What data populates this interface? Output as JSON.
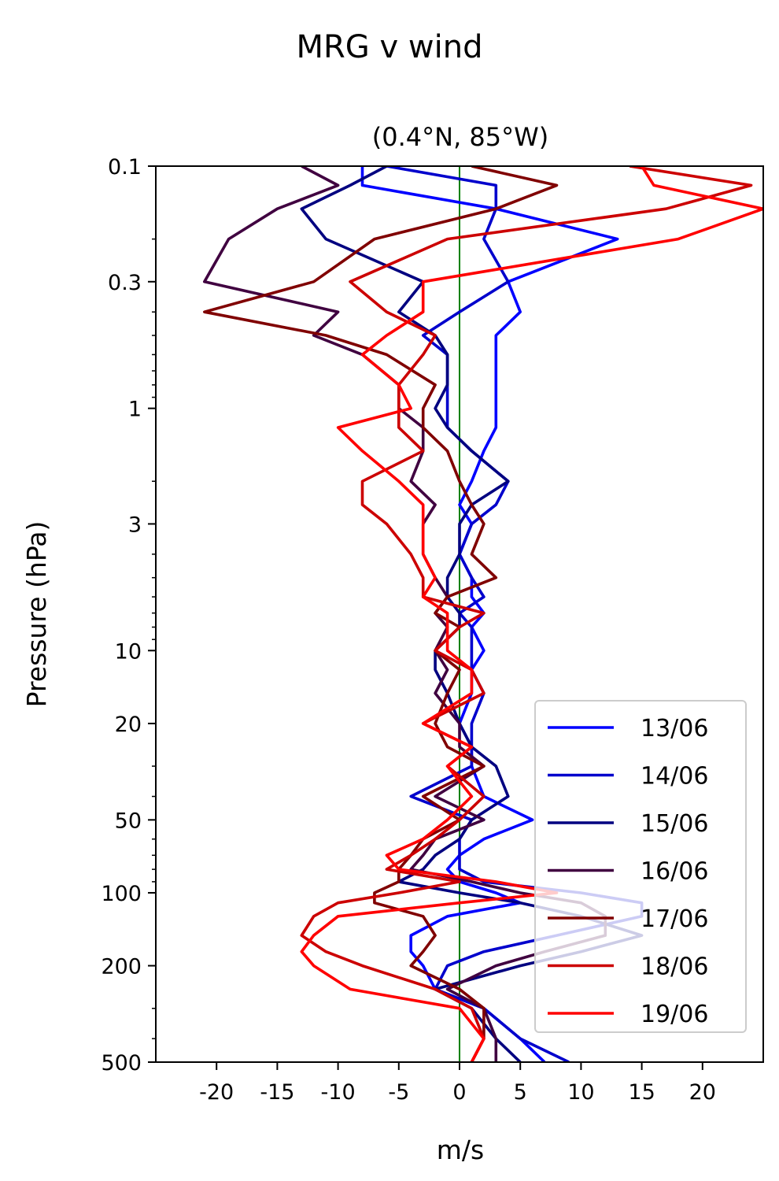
{
  "chart_data": {
    "type": "line",
    "title": "MRG v wind",
    "subtitle": "(0.4°N, 85°W)",
    "xlabel": "m/s",
    "ylabel": "Pressure (hPa)",
    "xlim": [
      -25,
      25
    ],
    "ylim": [
      500,
      0.1
    ],
    "yscale": "log",
    "x_ticks": [
      -20,
      -15,
      -10,
      -5,
      0,
      5,
      10,
      15,
      20
    ],
    "x_tick_labels": [
      "-20",
      "-15",
      "-10",
      "-5",
      "0",
      "5",
      "10",
      "15",
      "20"
    ],
    "y_ticks": [
      0.1,
      0.3,
      1,
      3,
      10,
      20,
      50,
      100,
      200,
      500
    ],
    "y_tick_labels": [
      "0.1",
      "0.3",
      "1",
      "3",
      "10",
      "20",
      "50",
      "100",
      "200",
      "500"
    ],
    "zero_line": {
      "x": 0,
      "color": "#008000"
    },
    "grid": false,
    "legend_position": "lower-right",
    "pressure_levels": [
      0.1,
      0.12,
      0.15,
      0.2,
      0.3,
      0.4,
      0.5,
      0.6,
      0.8,
      1,
      1.2,
      1.5,
      2,
      2.5,
      3,
      4,
      5,
      6,
      7,
      8,
      10,
      12,
      15,
      20,
      25,
      30,
      40,
      50,
      60,
      70,
      80,
      90,
      100,
      110,
      125,
      150,
      175,
      200,
      250,
      300,
      400,
      500
    ],
    "series": [
      {
        "name": "13/06",
        "color": "#0000ff",
        "values": [
          -8,
          -8,
          3,
          13,
          4,
          5,
          3,
          3,
          3,
          3,
          3,
          2,
          1,
          0,
          1,
          0,
          1,
          1,
          2,
          1,
          2,
          1,
          1,
          0,
          1,
          1,
          2,
          6,
          2,
          0,
          -1,
          0,
          3,
          5,
          -1,
          -4,
          -4,
          -3,
          -2,
          2,
          5,
          7
        ]
      },
      {
        "name": "14/06",
        "color": "#0000cc",
        "values": [
          -6,
          3,
          3,
          2,
          4,
          0,
          -3,
          -1,
          -1,
          -1,
          -1,
          1,
          4,
          3,
          1,
          0,
          1,
          2,
          0,
          1,
          1,
          1,
          2,
          1,
          1,
          1,
          -4,
          1,
          0,
          0,
          0,
          2,
          10,
          15,
          15,
          8,
          2,
          -1,
          -2,
          2,
          5,
          9
        ]
      },
      {
        "name": "15/06",
        "color": "#000080",
        "values": [
          -6,
          -9,
          -13,
          -11,
          -3,
          -5,
          -2,
          -1,
          -1,
          -2,
          -1,
          1,
          4,
          1,
          0,
          0,
          -1,
          -1,
          0,
          0,
          -2,
          -2,
          -1,
          0,
          1,
          3,
          4,
          1,
          0,
          -2,
          -3,
          -5,
          0,
          5,
          10,
          15,
          10,
          5,
          -2,
          1,
          3,
          5
        ]
      },
      {
        "name": "16/06",
        "color": "#400040",
        "values": [
          -13,
          -10,
          -15,
          -19,
          -21,
          -10,
          -12,
          -8,
          -5,
          -5,
          -3,
          -3,
          -4,
          -2,
          -3,
          -3,
          -2,
          -1,
          -2,
          -1,
          -2,
          -1,
          -2,
          0,
          0,
          2,
          -2,
          2,
          -2,
          -3,
          -4,
          1,
          5,
          10,
          12,
          12,
          7,
          3,
          -1,
          2,
          3,
          3
        ]
      },
      {
        "name": "17/06",
        "color": "#800000",
        "values": [
          1,
          8,
          3,
          -7,
          -12,
          -21,
          -11,
          -6,
          -2,
          -3,
          -3,
          -1,
          0,
          1,
          2,
          1,
          3,
          -1,
          -2,
          0,
          -2,
          0,
          -1,
          -2,
          -1,
          2,
          -3,
          0,
          -3,
          -4,
          -5,
          -5,
          -7,
          -7,
          -3,
          -2,
          -3,
          -4,
          0,
          2,
          2,
          1
        ]
      },
      {
        "name": "18/06",
        "color": "#cc0000",
        "values": [
          14,
          24,
          17,
          -1,
          -9,
          -6,
          -2,
          -3,
          -5,
          -5,
          -5,
          -3,
          -8,
          -8,
          -6,
          -4,
          -3,
          -3,
          2,
          0,
          -2,
          1,
          2,
          -3,
          1,
          -1,
          2,
          0,
          -2,
          -4,
          -6,
          0,
          -5,
          -10,
          -12,
          -13,
          -11,
          -8,
          -2,
          1,
          2,
          1
        ]
      },
      {
        "name": "19/06",
        "color": "#ff0000",
        "values": [
          15,
          16,
          25,
          18,
          -3,
          -3,
          -6,
          -8,
          -5,
          -4,
          -10,
          -8,
          -5,
          -3,
          -3,
          -3,
          -2,
          -3,
          -1,
          -1,
          -1,
          1,
          1,
          -3,
          1,
          -1,
          1,
          -1,
          -3,
          -6,
          -5,
          3,
          8,
          0,
          -10,
          -12,
          -13,
          -12,
          -9,
          0,
          2,
          1
        ]
      }
    ]
  }
}
